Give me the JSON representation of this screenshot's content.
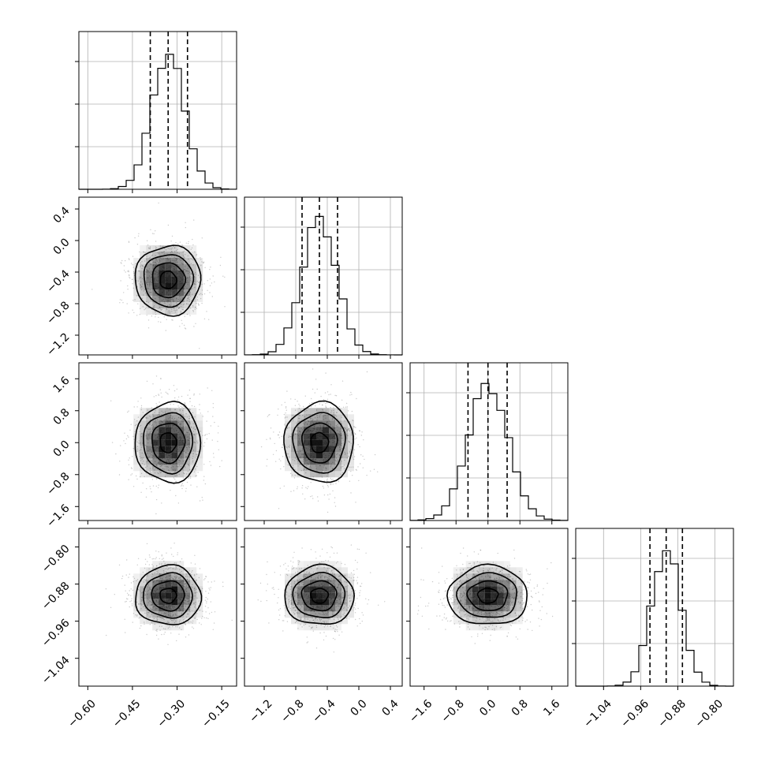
{
  "chart_data": {
    "type": "corner",
    "params": [
      {
        "range": [
          -0.63,
          -0.1
        ],
        "ticks": [
          -0.6,
          -0.45,
          -0.3,
          -0.15
        ],
        "tick_labels": [
          "−0.60",
          "−0.45",
          "−0.30",
          "−0.15"
        ],
        "mean": -0.33,
        "sigma": 0.055,
        "quantiles": [
          -0.39,
          -0.33,
          -0.265
        ],
        "hist_peak": 1.0
      },
      {
        "range": [
          -1.45,
          0.55
        ],
        "ticks": [
          -1.2,
          -0.8,
          -0.4,
          0.0,
          0.4
        ],
        "tick_labels": [
          "−1.2",
          "−0.8",
          "−0.4",
          "0.0",
          "0.4"
        ],
        "mean": -0.5,
        "sigma": 0.22,
        "quantiles": [
          -0.72,
          -0.5,
          -0.27
        ],
        "hist_peak": 1.0
      },
      {
        "range": [
          -1.95,
          2.0
        ],
        "ticks": [
          -1.6,
          -0.8,
          0.0,
          0.8,
          1.6
        ],
        "tick_labels": [
          "−1.6",
          "−0.8",
          "0.0",
          "0.8",
          "1.6"
        ],
        "mean": 0.0,
        "sigma": 0.5,
        "quantiles": [
          -0.5,
          0.0,
          0.48
        ],
        "hist_peak": 1.0
      },
      {
        "range": [
          -1.1,
          -0.76
        ],
        "ticks": [
          -1.04,
          -0.96,
          -0.88,
          -0.8
        ],
        "tick_labels": [
          "−1.04",
          "−0.96",
          "−0.88",
          "−0.80"
        ],
        "mean": -0.905,
        "sigma": 0.032,
        "quantiles": [
          -0.94,
          -0.905,
          -0.87
        ],
        "hist_peak": 1.0
      }
    ],
    "contour_levels_sigma": [
      0.5,
      1.0,
      1.5,
      2.0
    ],
    "grid": true,
    "quantile_style": "dashed"
  },
  "colors": {
    "axis": "#000000",
    "grid": "#b0b0b0",
    "scatter": "#8c8c8c",
    "density": "#000000"
  }
}
